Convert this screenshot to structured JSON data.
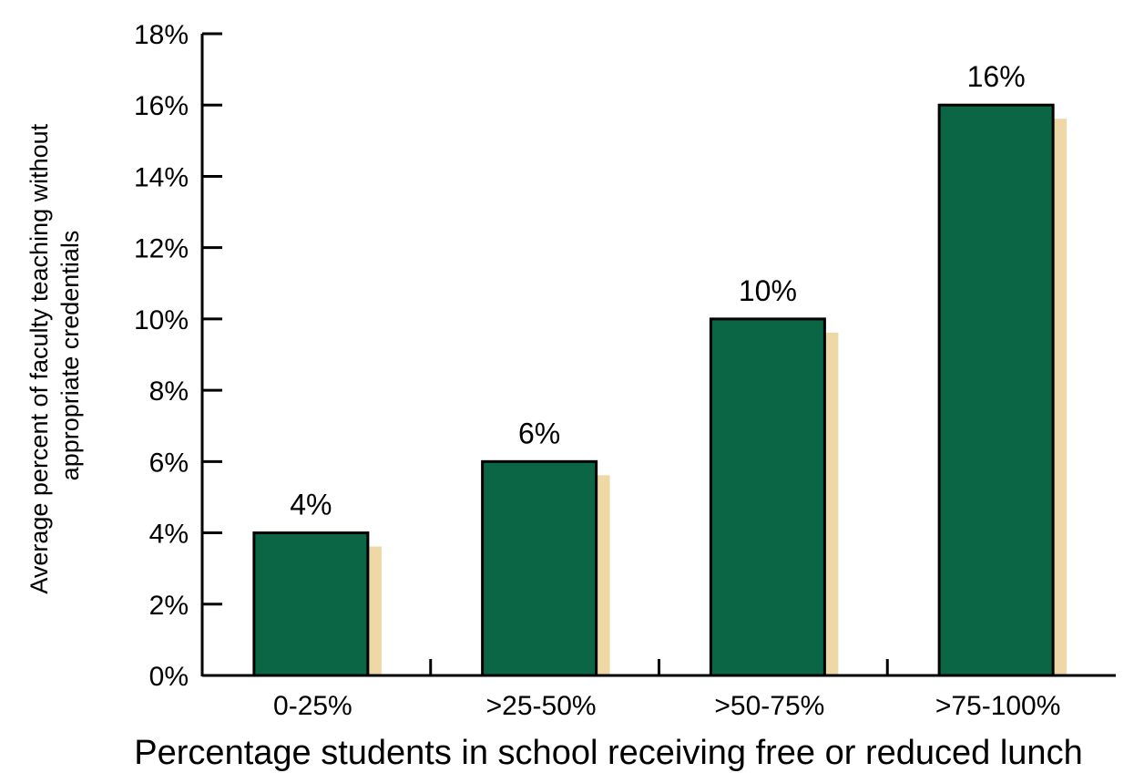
{
  "chart_data": {
    "type": "bar",
    "categories": [
      "0-25%",
      ">25-50%",
      ">50-75%",
      ">75-100%"
    ],
    "values": [
      4,
      6,
      10,
      16
    ],
    "data_labels": [
      "4%",
      "6%",
      "10%",
      "16%"
    ],
    "xlabel": "Percentage students in school receiving free or reduced lunch",
    "ylabel_lines": [
      "Average percent of faculty teaching without",
      "appropriate credentials"
    ],
    "ylim": [
      0,
      18
    ],
    "yticks": [
      0,
      2,
      4,
      6,
      8,
      10,
      12,
      14,
      16,
      18
    ],
    "ytick_labels": [
      "0%",
      "2%",
      "4%",
      "6%",
      "8%",
      "10%",
      "12%",
      "14%",
      "16%",
      "18%"
    ],
    "grid": false,
    "colors": {
      "bar": "#0b6645",
      "shadow": "#eed9a6",
      "outline": "#000000"
    }
  }
}
